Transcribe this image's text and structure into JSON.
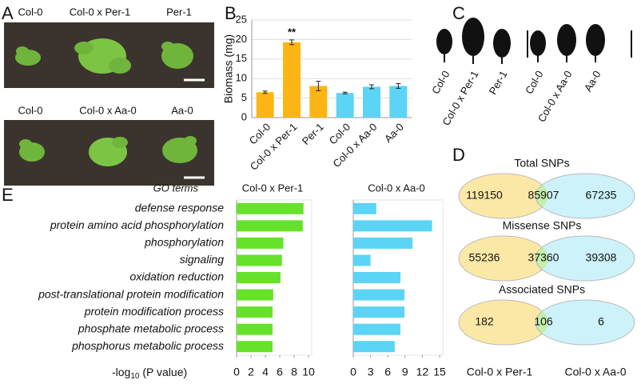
{
  "panel_labels": [
    "A",
    "B",
    "C",
    "D",
    "E"
  ],
  "photos": [
    {
      "labels": [
        "Col-0",
        "Col-0 x Per-1",
        "Per-1"
      ]
    },
    {
      "labels": [
        "Col-0",
        "Col-0 x Aa-0",
        "Aa-0"
      ]
    }
  ],
  "leaves": {
    "labels": [
      "Col-0",
      "Col-0 x Per-1",
      "Per-1",
      "Col-0",
      "Col-0 x Aa-0",
      "Aa-0"
    ]
  },
  "chart_data": [
    {
      "type": "bar",
      "y_label": "Biomass (mg)",
      "categories": [
        "Col-0",
        "Col-0 x Per-1",
        "Per-1",
        "Col-0",
        "Col-0 x Aa-0",
        "Aa-0"
      ],
      "values": [
        6.5,
        19.3,
        8.1,
        6.3,
        7.9,
        8.1
      ],
      "errors": [
        0.3,
        0.6,
        1.2,
        0.2,
        0.5,
        0.6
      ],
      "colors": [
        "#fdb515",
        "#fdb515",
        "#fdb515",
        "#5bd4f5",
        "#5bd4f5",
        "#5bd4f5"
      ],
      "ylim": [
        0,
        25
      ],
      "yticks": [
        0,
        5,
        10,
        15,
        20,
        25
      ],
      "grid": true,
      "annotation": "**"
    },
    {
      "type": "hbar",
      "title": "Col-0 x Per-1",
      "categories": [
        "defense response",
        "protein amino acid phosphorylation",
        "phosphorylation",
        "signaling",
        "oxidation reduction",
        "post-translational protein modification",
        "protein modification process",
        "phosphate metabolic process",
        "phosphorus metabolic process"
      ],
      "values": [
        9.3,
        9.2,
        6.5,
        6.3,
        6.1,
        5.1,
        5.0,
        5.0,
        5.0
      ],
      "color": "#66e22a",
      "xlim": [
        0,
        10
      ],
      "xticks": [
        0,
        2,
        4,
        6,
        8,
        10
      ]
    },
    {
      "type": "hbar",
      "title": "Col-0 x Aa-0",
      "values": [
        4.0,
        13.7,
        10.3,
        3.0,
        8.2,
        8.9,
        8.9,
        8.2,
        7.2
      ],
      "color": "#5bd4f5",
      "xlim": [
        0,
        15
      ],
      "xticks": [
        0,
        3,
        6,
        9,
        12,
        15
      ]
    }
  ],
  "go_header": "GO terms",
  "x_label": [
    "-log",
    "10",
    " (P value)"
  ],
  "venn": {
    "sets": [
      "Col-0 x Per-1",
      "Col-0 x Aa-0"
    ],
    "diagrams": [
      {
        "title": "Total SNPs",
        "counts": [
          119150,
          85907,
          67235
        ]
      },
      {
        "title": "Missense SNPs",
        "counts": [
          55236,
          37360,
          39308
        ]
      },
      {
        "title": "Associated SNPs",
        "counts": [
          182,
          106,
          6
        ]
      }
    ]
  }
}
